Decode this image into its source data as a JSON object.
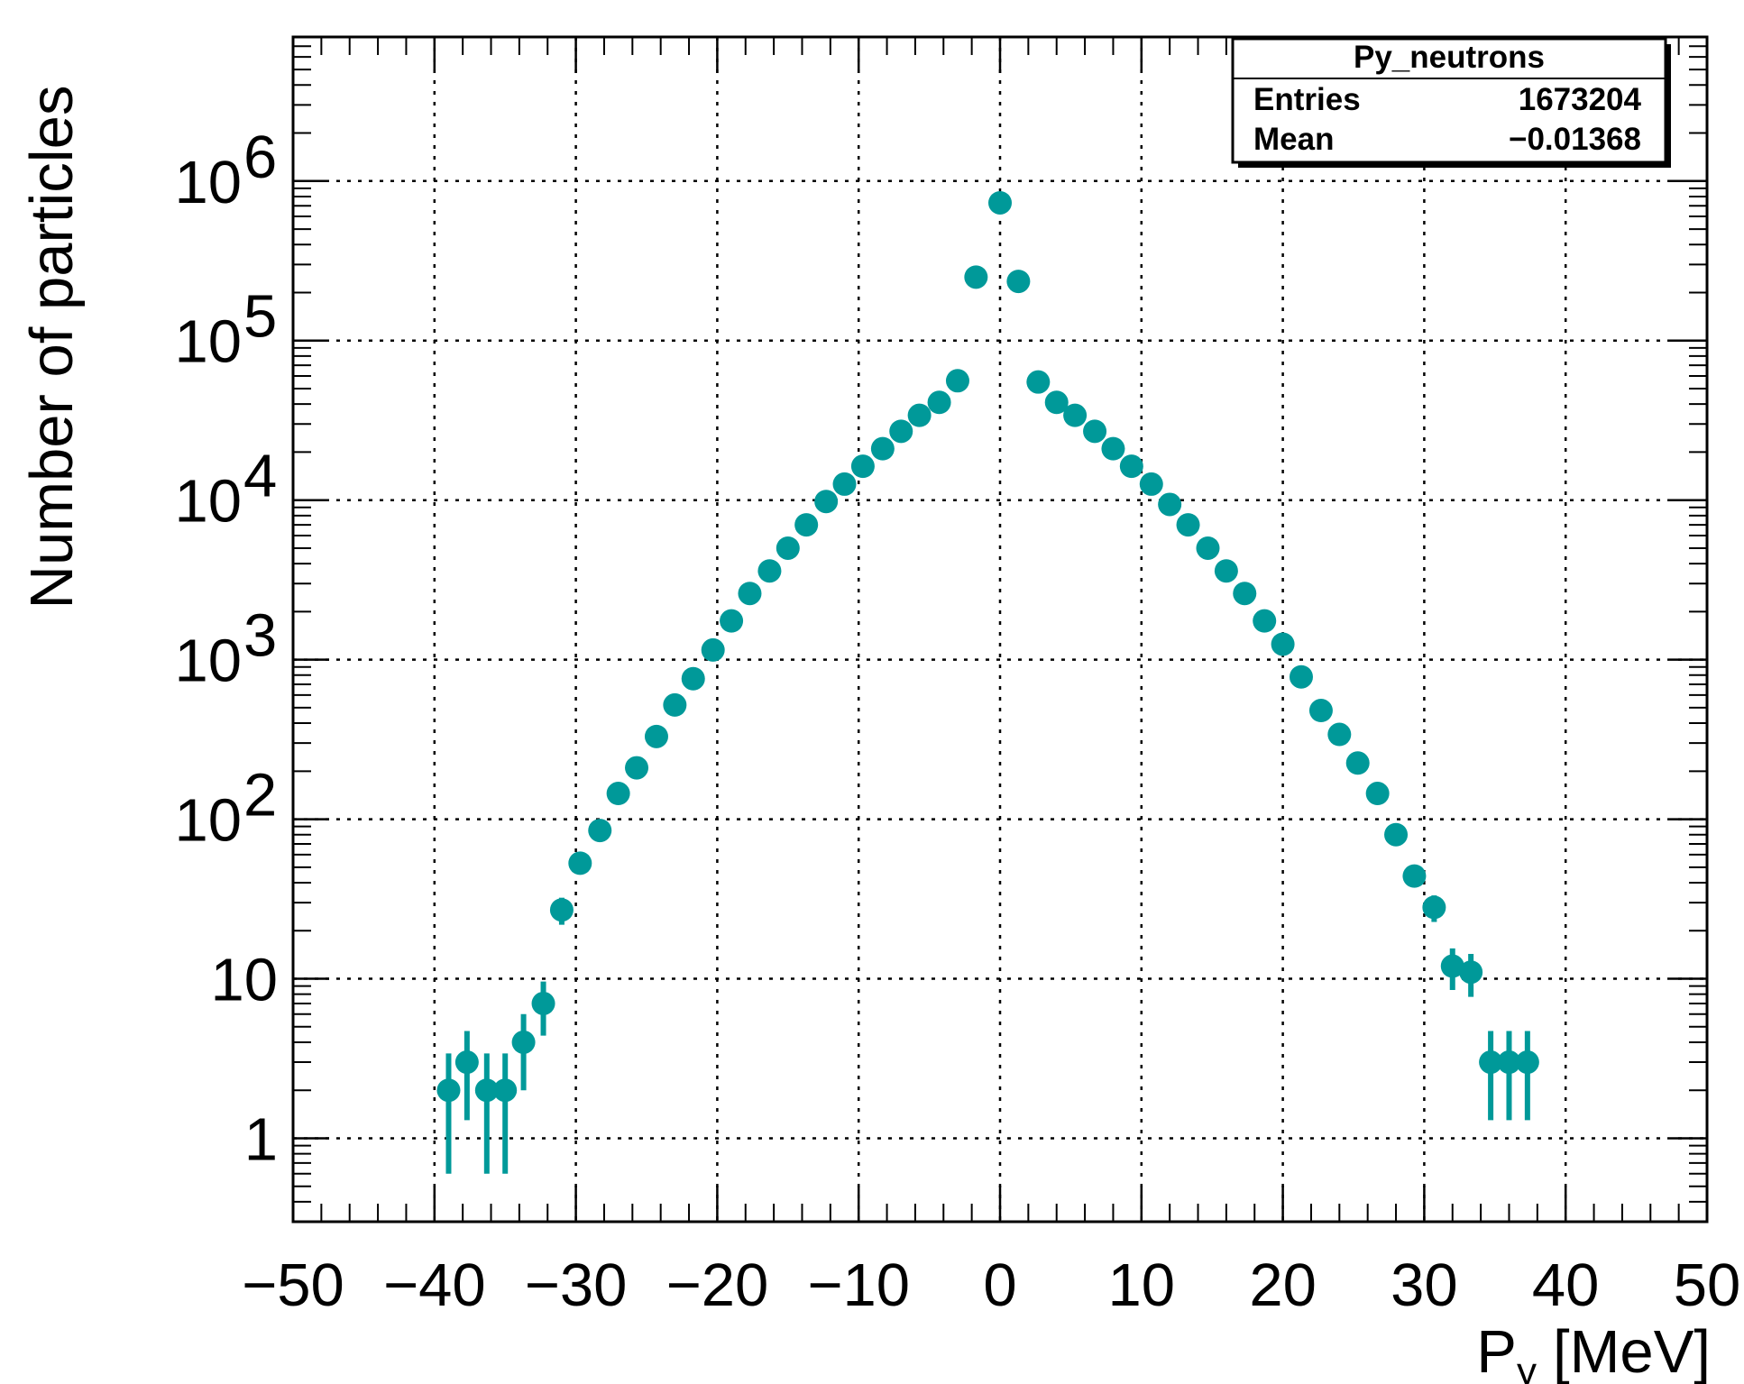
{
  "chart_data": {
    "type": "scatter",
    "title": "",
    "xlabel_main": "P",
    "xlabel_sub": "y",
    "xlabel_unit": "[MeV]",
    "ylabel": "Number of particles",
    "xlim": [
      -50,
      50
    ],
    "ylim": [
      0.3,
      8000000
    ],
    "yscale": "log",
    "grid": true,
    "marker_color": "#009999",
    "x_ticks": [
      -50,
      -40,
      -30,
      -20,
      -10,
      0,
      10,
      20,
      30,
      40,
      50
    ],
    "x_tick_labels": [
      "−50",
      "−40",
      "−30",
      "−20",
      "−10",
      "0",
      "10",
      "20",
      "30",
      "40",
      "50"
    ],
    "y_ticks": [
      {
        "value": 1,
        "base": "1",
        "exp": ""
      },
      {
        "value": 10,
        "base": "10",
        "exp": ""
      },
      {
        "value": 100,
        "base": "10",
        "exp": "2"
      },
      {
        "value": 1000,
        "base": "10",
        "exp": "3"
      },
      {
        "value": 10000,
        "base": "10",
        "exp": "4"
      },
      {
        "value": 100000,
        "base": "10",
        "exp": "5"
      },
      {
        "value": 1000000,
        "base": "10",
        "exp": "6"
      }
    ],
    "stats_box": {
      "title": "Py_neutrons",
      "entries_label": "Entries",
      "entries_value": "1673204",
      "mean_label": "Mean",
      "mean_value": "−0.01368"
    },
    "series": [
      {
        "name": "Py_neutrons",
        "x": [
          -39.0,
          -37.7,
          -36.3,
          -35.0,
          -33.7,
          -32.3,
          -31.0,
          -29.7,
          -28.3,
          -27.0,
          -25.7,
          -24.3,
          -23.0,
          -21.7,
          -20.3,
          -19.0,
          -17.7,
          -16.3,
          -15.0,
          -13.7,
          -12.3,
          -11.0,
          -9.7,
          -8.3,
          -7.0,
          -5.7,
          -4.3,
          -3.0,
          -1.7,
          0.0,
          1.3,
          2.7,
          4.0,
          5.3,
          6.7,
          8.0,
          9.3,
          10.7,
          12.0,
          13.3,
          14.7,
          16.0,
          17.3,
          18.7,
          20.0,
          21.3,
          22.7,
          24.0,
          25.3,
          26.7,
          28.0,
          29.3,
          30.7,
          32.0,
          33.3,
          34.7,
          36.0,
          37.3
        ],
        "y": [
          2,
          3,
          2,
          2,
          4,
          7,
          27,
          53,
          85,
          145,
          210,
          330,
          520,
          760,
          1150,
          1750,
          2600,
          3600,
          5000,
          7000,
          9800,
          12600,
          16300,
          21000,
          27000,
          34000,
          41000,
          56000,
          250000,
          730000,
          235000,
          55000,
          41000,
          34000,
          27000,
          21000,
          16300,
          12600,
          9400,
          7000,
          5000,
          3600,
          2600,
          1750,
          1250,
          780,
          480,
          340,
          225,
          145,
          80,
          44,
          28,
          12,
          11,
          3,
          3,
          3
        ],
        "yerr_low": [
          1.4,
          1.7,
          1.4,
          1.4,
          2.0,
          2.6,
          5.2,
          7.3,
          9.2,
          12,
          14.5,
          18,
          23,
          28,
          34,
          42,
          51,
          60,
          71,
          84,
          99,
          112,
          128,
          145,
          164,
          184,
          202,
          237,
          500,
          854,
          485,
          235,
          202,
          184,
          164,
          145,
          128,
          112,
          97,
          84,
          71,
          60,
          51,
          42,
          35,
          28,
          22,
          18,
          15,
          12,
          9,
          6.6,
          5.3,
          3.5,
          3.3,
          1.7,
          1.7,
          1.7
        ],
        "yerr_high": [
          1.4,
          1.7,
          1.4,
          1.4,
          2.0,
          2.6,
          5.2,
          7.3,
          9.2,
          12,
          14.5,
          18,
          23,
          28,
          34,
          42,
          51,
          60,
          71,
          84,
          99,
          112,
          128,
          145,
          164,
          184,
          202,
          237,
          500,
          854,
          485,
          235,
          202,
          184,
          164,
          145,
          128,
          112,
          97,
          84,
          71,
          60,
          51,
          42,
          35,
          28,
          22,
          18,
          15,
          12,
          9,
          6.6,
          5.3,
          3.5,
          3.3,
          1.7,
          1.7,
          1.7
        ]
      }
    ]
  }
}
